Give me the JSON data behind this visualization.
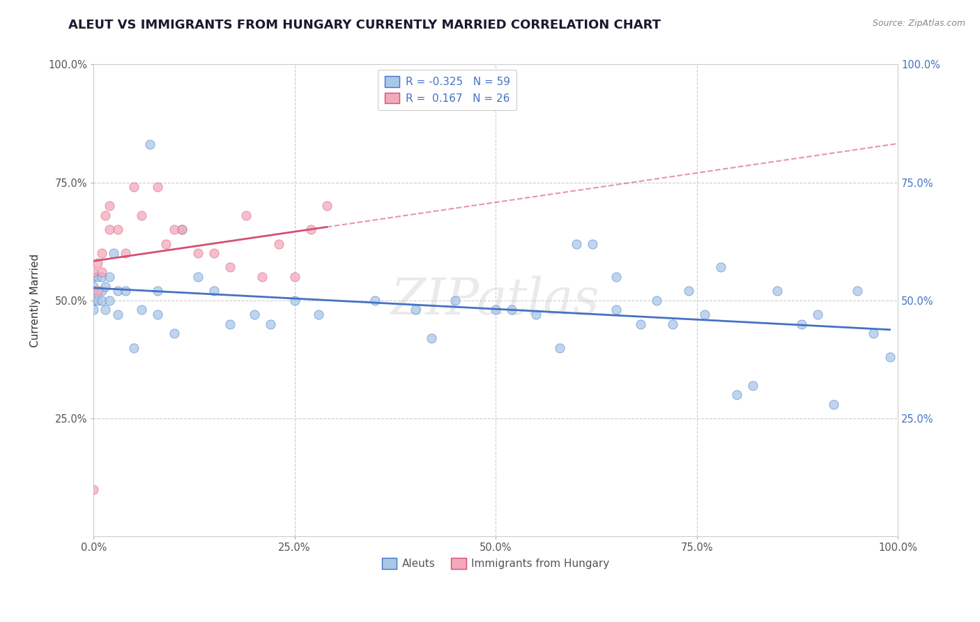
{
  "title": "ALEUT VS IMMIGRANTS FROM HUNGARY CURRENTLY MARRIED CORRELATION CHART",
  "source": "Source: ZipAtlas.com",
  "ylabel": "Currently Married",
  "xlabel": "",
  "watermark": "ZIPatlas",
  "xlim": [
    0.0,
    1.0
  ],
  "ylim": [
    0.0,
    1.0
  ],
  "xtick_labels": [
    "0.0%",
    "25.0%",
    "50.0%",
    "75.0%",
    "100.0%"
  ],
  "xtick_positions": [
    0.0,
    0.25,
    0.5,
    0.75,
    1.0
  ],
  "ytick_labels": [
    "25.0%",
    "50.0%",
    "75.0%",
    "100.0%"
  ],
  "ytick_positions": [
    0.25,
    0.5,
    0.75,
    1.0
  ],
  "aleuts_color": "#a8c8e8",
  "hungary_color": "#f4a8bc",
  "aleuts_line_color": "#4472c4",
  "hungary_line_color": "#d45070",
  "aleuts_x": [
    0.0,
    0.0,
    0.0,
    0.0,
    0.0,
    0.005,
    0.005,
    0.01,
    0.01,
    0.01,
    0.015,
    0.015,
    0.02,
    0.02,
    0.025,
    0.03,
    0.03,
    0.04,
    0.05,
    0.06,
    0.07,
    0.08,
    0.08,
    0.1,
    0.11,
    0.13,
    0.15,
    0.17,
    0.2,
    0.22,
    0.25,
    0.28,
    0.35,
    0.4,
    0.42,
    0.45,
    0.5,
    0.52,
    0.55,
    0.58,
    0.6,
    0.62,
    0.65,
    0.65,
    0.68,
    0.7,
    0.72,
    0.74,
    0.76,
    0.78,
    0.8,
    0.82,
    0.85,
    0.88,
    0.9,
    0.92,
    0.95,
    0.97,
    0.99
  ],
  "aleuts_y": [
    0.55,
    0.53,
    0.52,
    0.5,
    0.48,
    0.55,
    0.5,
    0.55,
    0.52,
    0.5,
    0.53,
    0.48,
    0.55,
    0.5,
    0.6,
    0.52,
    0.47,
    0.52,
    0.4,
    0.48,
    0.83,
    0.52,
    0.47,
    0.43,
    0.65,
    0.55,
    0.52,
    0.45,
    0.47,
    0.45,
    0.5,
    0.47,
    0.5,
    0.48,
    0.42,
    0.5,
    0.48,
    0.48,
    0.47,
    0.4,
    0.62,
    0.62,
    0.55,
    0.48,
    0.45,
    0.5,
    0.45,
    0.52,
    0.47,
    0.57,
    0.3,
    0.32,
    0.52,
    0.45,
    0.47,
    0.28,
    0.52,
    0.43,
    0.38
  ],
  "hungary_x": [
    0.0,
    0.0,
    0.005,
    0.005,
    0.01,
    0.01,
    0.015,
    0.02,
    0.02,
    0.03,
    0.04,
    0.05,
    0.06,
    0.08,
    0.09,
    0.1,
    0.11,
    0.13,
    0.15,
    0.17,
    0.19,
    0.21,
    0.23,
    0.25,
    0.27,
    0.29
  ],
  "hungary_y": [
    0.1,
    0.56,
    0.58,
    0.52,
    0.6,
    0.56,
    0.68,
    0.7,
    0.65,
    0.65,
    0.6,
    0.74,
    0.68,
    0.74,
    0.62,
    0.65,
    0.65,
    0.6,
    0.6,
    0.57,
    0.68,
    0.55,
    0.62,
    0.55,
    0.65,
    0.7
  ],
  "title_color": "#1a1a2e",
  "grid_color": "#cccccc",
  "background_color": "#ffffff",
  "title_fontsize": 13,
  "axis_label_fontsize": 11,
  "tick_fontsize": 10.5,
  "source_fontsize": 9,
  "right_tick_color": "#4472c4"
}
